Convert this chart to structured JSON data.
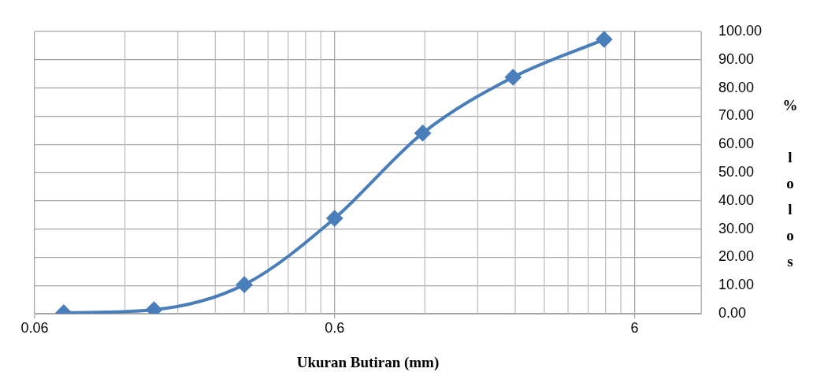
{
  "chart_data": {
    "type": "line",
    "xlabel": "Ukuran Butiran (mm)",
    "ylabel": "% lolos",
    "x": [
      0.075,
      0.15,
      0.3,
      0.6,
      1.18,
      2.36,
      4.75
    ],
    "series": [
      {
        "color": "#4a7ebb",
        "values": [
          0.3,
          1.4,
          10.3,
          33.8,
          64,
          83.8,
          97.2
        ]
      }
    ],
    "log": "x",
    "xlim": [
      0.06,
      10
    ],
    "xticks": [
      0.06,
      0.6,
      6
    ],
    "ylim": [
      0,
      100
    ],
    "yticks": [
      {
        "value": 0,
        "label": "0.00"
      },
      {
        "value": 10,
        "label": "10.00"
      },
      {
        "value": 20,
        "label": "20.00"
      },
      {
        "value": 30,
        "label": "30.00"
      },
      {
        "value": 40,
        "label": "40.00"
      },
      {
        "value": 50,
        "label": "50.00"
      },
      {
        "value": 60,
        "label": "60.00"
      },
      {
        "value": 70,
        "label": "70.00"
      },
      {
        "value": 80,
        "label": "80.00"
      },
      {
        "value": 90,
        "label": "90.00"
      },
      {
        "value": 100,
        "label": "100.00"
      }
    ],
    "grid": true,
    "legend": false,
    "marker": "diamond",
    "line_style": "solid"
  }
}
